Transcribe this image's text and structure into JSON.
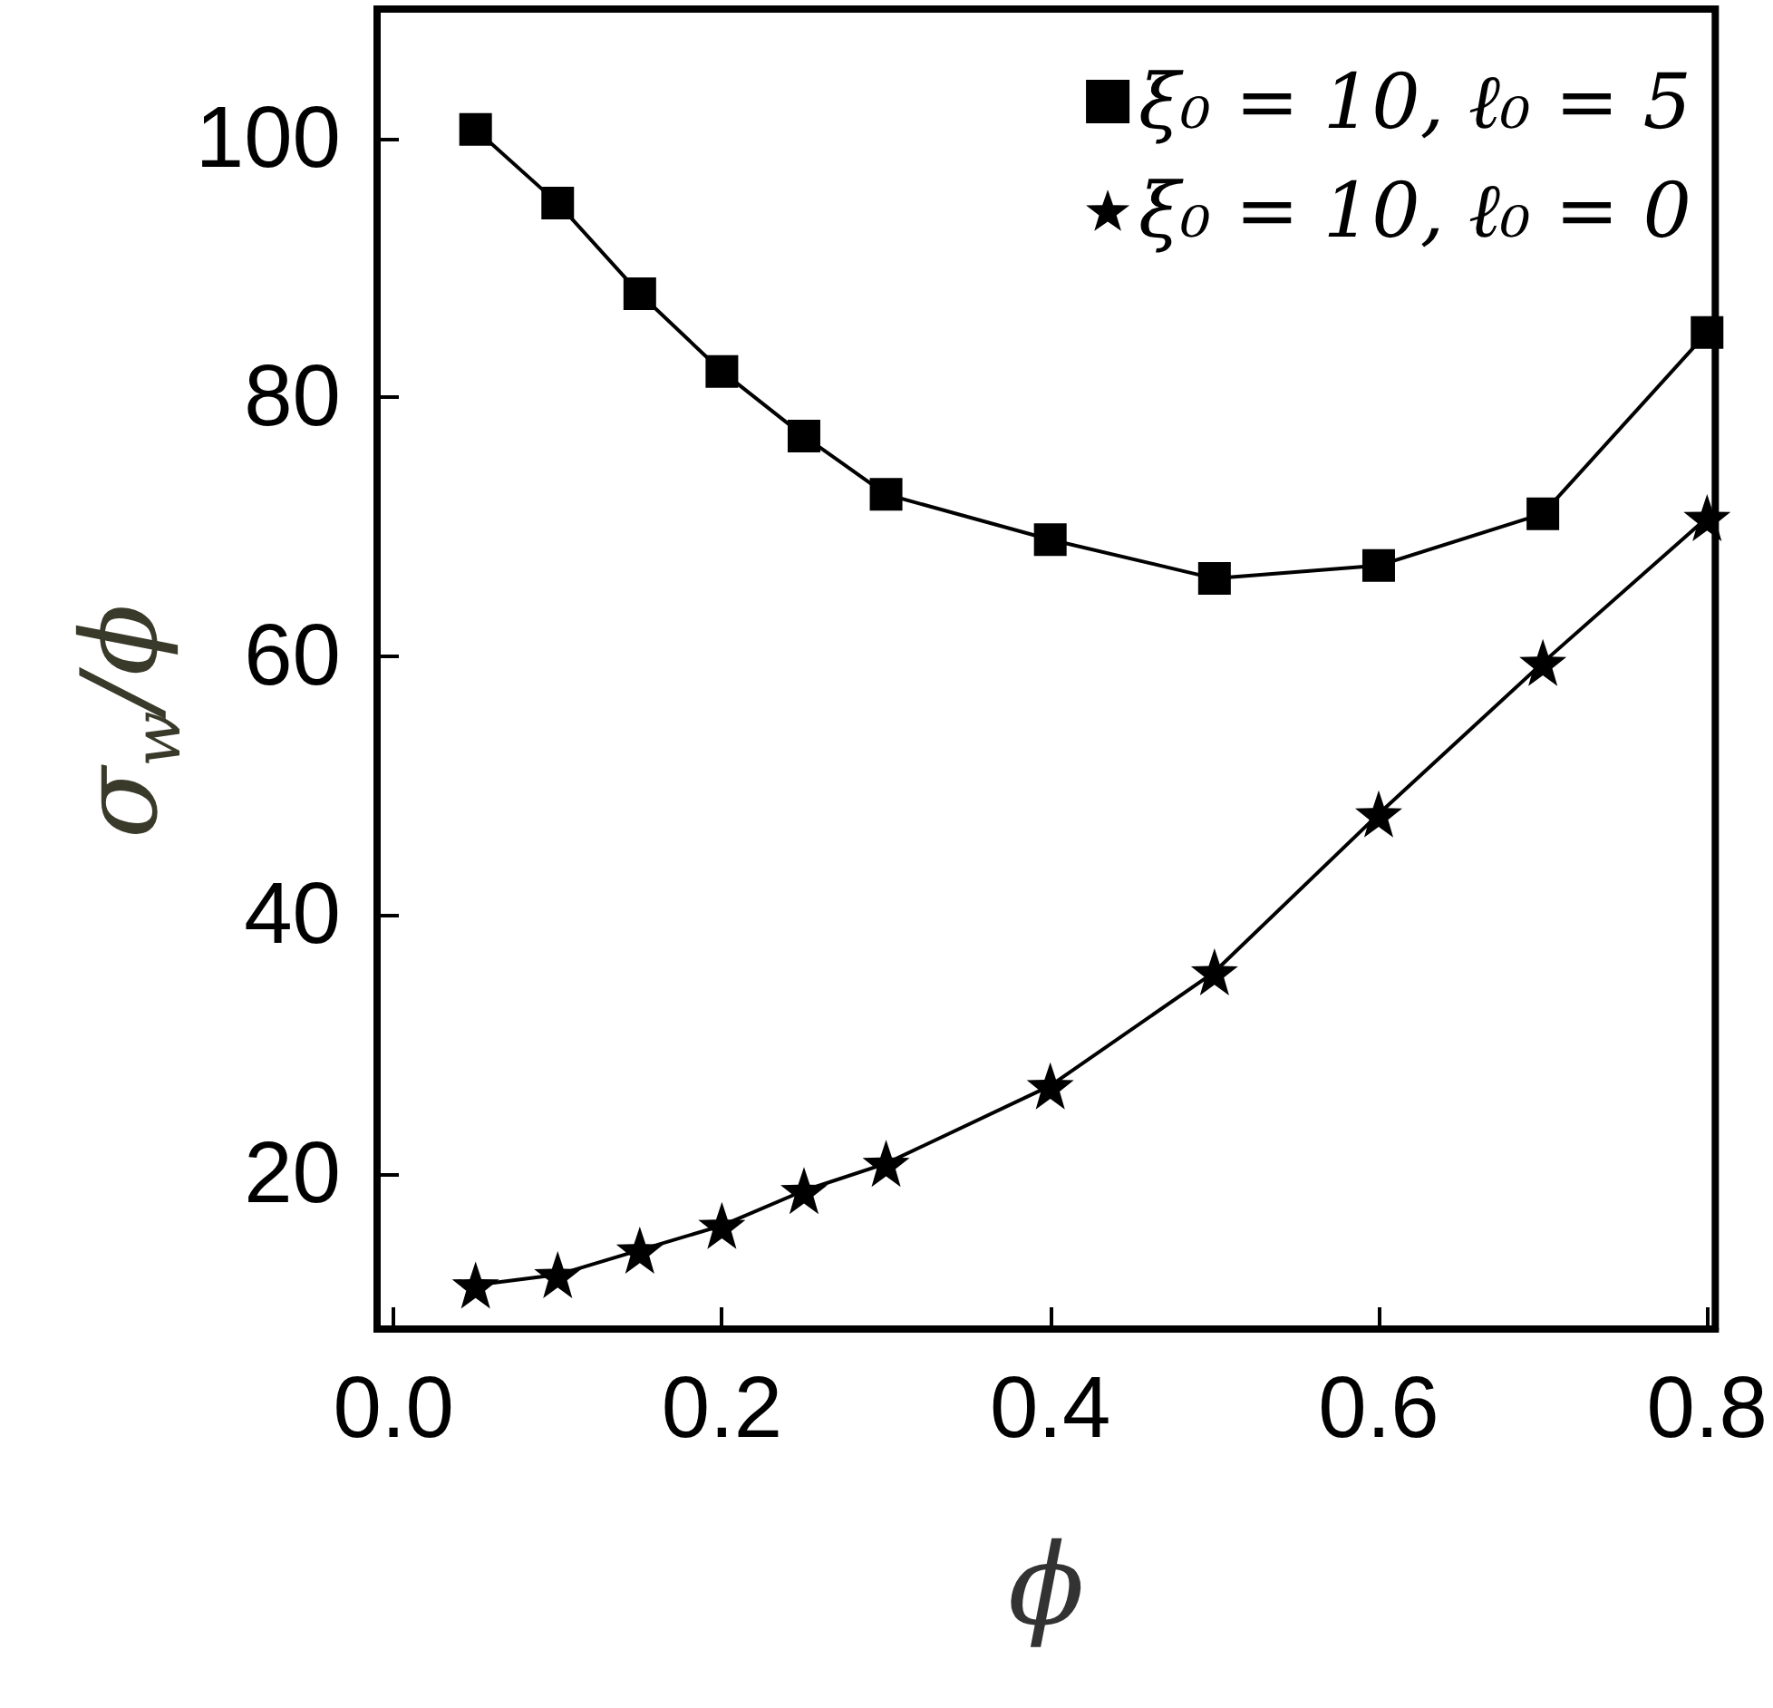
{
  "chart_data": {
    "type": "line",
    "xlabel": "ϕ",
    "ylabel": "σ$_{w}$/ϕ",
    "xlim": [
      -0.01,
      0.805
    ],
    "ylim": [
      8,
      110
    ],
    "xticks": [
      {
        "value": 0,
        "label": "0.0"
      },
      {
        "value": 0.2,
        "label": "0.2"
      },
      {
        "value": 0.4,
        "label": "0.4"
      },
      {
        "value": 0.6,
        "label": "0.6"
      },
      {
        "value": 0.8,
        "label": "0.8"
      }
    ],
    "yticks": [
      20,
      40,
      60,
      80,
      100
    ],
    "x": [
      0.05,
      0.1,
      0.15,
      0.2,
      0.25,
      0.3,
      0.4,
      0.5,
      0.6,
      0.7,
      0.8
    ],
    "series": [
      {
        "name": "ξ₀ = 10, ℓ₀ = 5",
        "color": "#000000",
        "marker": "square",
        "values": [
          100.7,
          95,
          88,
          82,
          77,
          72.5,
          69,
          66,
          67,
          71,
          85
        ]
      },
      {
        "name": "ξ₀ = 10, ℓ₀ = 0",
        "color": "#000000",
        "marker": "star",
        "values": [
          11.4,
          12.2,
          14.1,
          16,
          18.7,
          20.8,
          26.8,
          35.6,
          47.8,
          59.5,
          70.7
        ]
      }
    ],
    "grid": false,
    "legend": "top right"
  }
}
